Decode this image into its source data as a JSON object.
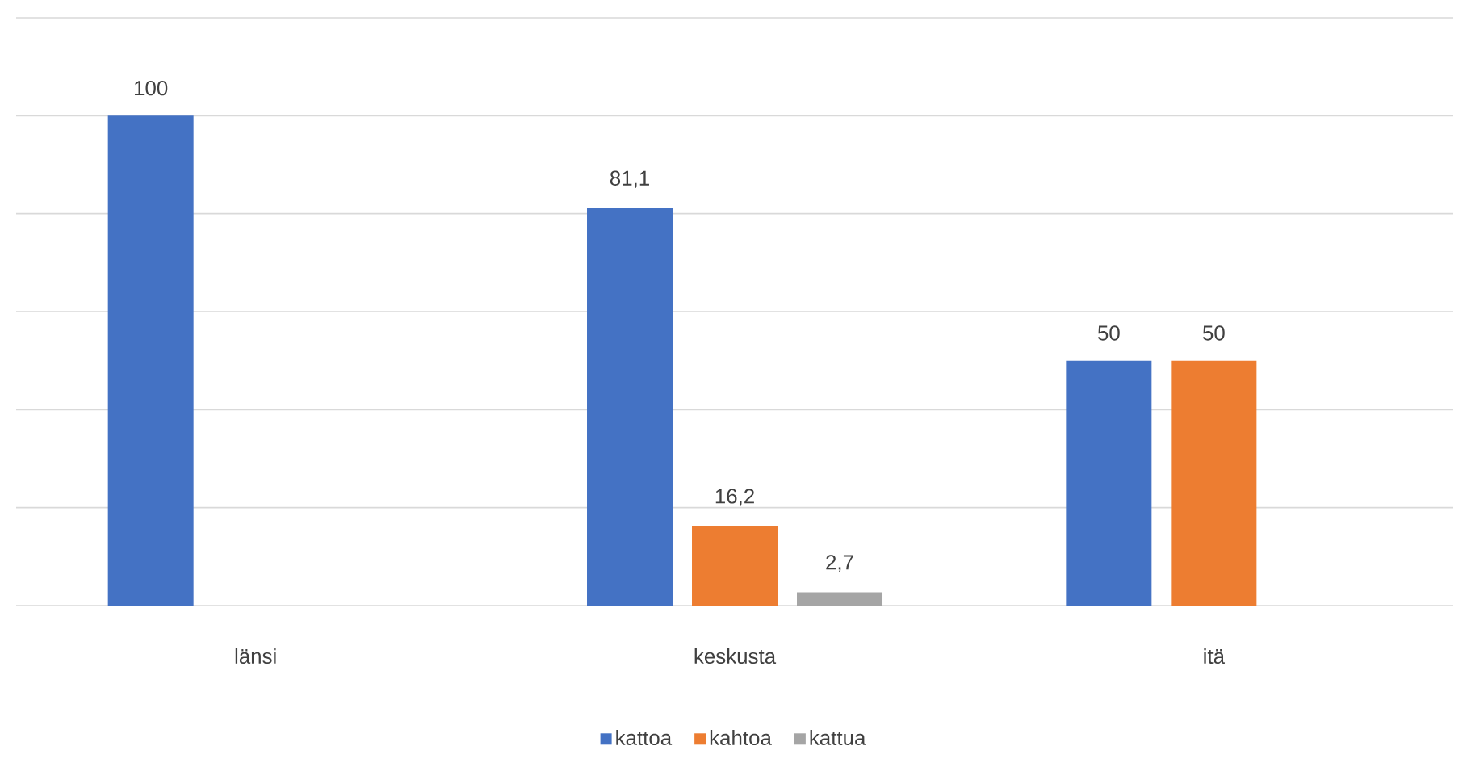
{
  "chart_data": {
    "type": "bar",
    "categories": [
      "länsi",
      "keskusta",
      "itä"
    ],
    "series": [
      {
        "name": "kattoa",
        "color": "#4472c4",
        "values": [
          100,
          81.1,
          50
        ],
        "value_labels": [
          "100",
          "81,1",
          "50"
        ]
      },
      {
        "name": "kahtoa",
        "color": "#ed7d31",
        "values": [
          null,
          16.2,
          50
        ],
        "value_labels": [
          null,
          "16,2",
          "50"
        ]
      },
      {
        "name": "kattua",
        "color": "#a5a5a5",
        "values": [
          null,
          2.7,
          null
        ],
        "value_labels": [
          null,
          "2,7",
          null
        ]
      }
    ],
    "ylim": [
      0,
      120
    ],
    "yticks": [
      {
        "value": 0,
        "label": null
      },
      {
        "value": 20,
        "label": null
      },
      {
        "value": 40,
        "label": null
      },
      {
        "value": 60,
        "label": null
      },
      {
        "value": 80,
        "label": null
      },
      {
        "value": 100,
        "label": null
      },
      {
        "value": 120,
        "label": null
      }
    ],
    "grid": "y",
    "legend": "bottom",
    "tick_labels": "x"
  }
}
